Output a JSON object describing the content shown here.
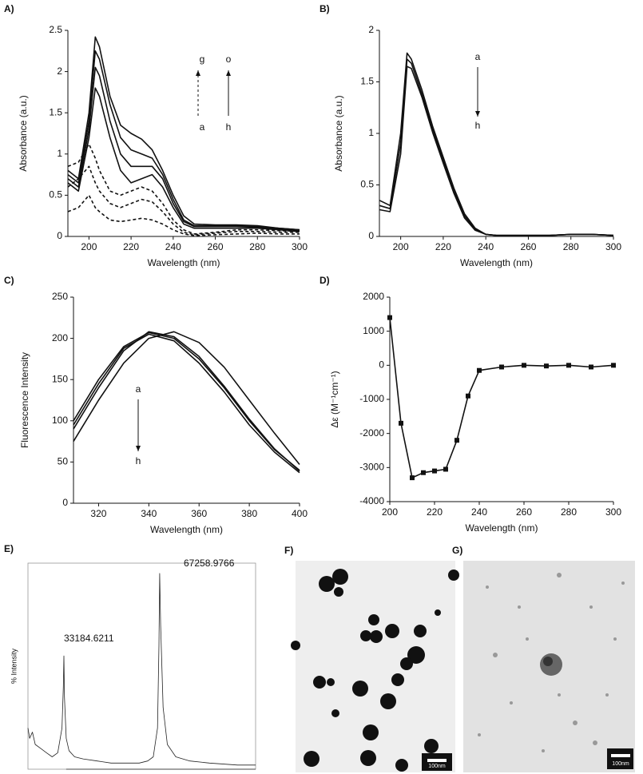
{
  "chart_data": [
    {
      "type": "line",
      "label": "A)",
      "xlabel": "Wavelength (nm)",
      "ylabel": "Absorbance (a.u.)",
      "xlim": [
        190,
        300
      ],
      "xticks": [
        200,
        220,
        240,
        260,
        280,
        300
      ],
      "ylim": [
        0,
        2.5
      ],
      "yticks": [
        0,
        0.5,
        1,
        1.5,
        2,
        2.5
      ],
      "annotations": [
        "g",
        "a",
        "o",
        "h"
      ],
      "x": [
        190,
        195,
        200,
        203,
        205,
        210,
        215,
        220,
        225,
        230,
        235,
        240,
        245,
        250,
        260,
        270,
        280,
        290,
        300
      ],
      "series": [
        {
          "color": "#111",
          "style": "solid",
          "values": [
            0.8,
            0.7,
            1.5,
            2.42,
            2.3,
            1.7,
            1.35,
            1.25,
            1.18,
            1.05,
            0.8,
            0.5,
            0.25,
            0.15,
            0.14,
            0.14,
            0.13,
            0.1,
            0.08
          ]
        },
        {
          "color": "#111",
          "style": "solid",
          "values": [
            0.75,
            0.65,
            1.4,
            2.25,
            2.15,
            1.6,
            1.2,
            1.05,
            1.0,
            0.95,
            0.75,
            0.45,
            0.2,
            0.13,
            0.13,
            0.13,
            0.12,
            0.1,
            0.08
          ]
        },
        {
          "color": "#111",
          "style": "solid",
          "values": [
            0.7,
            0.6,
            1.3,
            2.05,
            1.95,
            1.4,
            1.0,
            0.85,
            0.85,
            0.85,
            0.7,
            0.4,
            0.18,
            0.12,
            0.12,
            0.12,
            0.11,
            0.09,
            0.07
          ]
        },
        {
          "color": "#111",
          "style": "solid",
          "values": [
            0.65,
            0.55,
            1.2,
            1.8,
            1.7,
            1.2,
            0.8,
            0.65,
            0.7,
            0.75,
            0.6,
            0.35,
            0.15,
            0.1,
            0.1,
            0.1,
            0.1,
            0.08,
            0.06
          ]
        },
        {
          "color": "#111",
          "style": "dashed",
          "values": [
            0.85,
            0.9,
            1.12,
            0.95,
            0.8,
            0.55,
            0.5,
            0.55,
            0.6,
            0.55,
            0.4,
            0.2,
            0.08,
            0.03,
            0.05,
            0.08,
            0.08,
            0.07,
            0.06
          ]
        },
        {
          "color": "#111",
          "style": "dashed",
          "values": [
            0.6,
            0.7,
            0.85,
            0.65,
            0.55,
            0.4,
            0.35,
            0.4,
            0.45,
            0.42,
            0.3,
            0.15,
            0.05,
            0.02,
            0.04,
            0.06,
            0.06,
            0.05,
            0.05
          ]
        },
        {
          "color": "#111",
          "style": "dashed",
          "values": [
            0.3,
            0.35,
            0.5,
            0.35,
            0.3,
            0.2,
            0.18,
            0.2,
            0.22,
            0.2,
            0.15,
            0.08,
            0.03,
            0.01,
            0.02,
            0.03,
            0.04,
            0.03,
            0.03
          ]
        }
      ]
    },
    {
      "type": "line",
      "label": "B)",
      "xlabel": "Wavelength (nm)",
      "ylabel": "Absorbance (a.u.)",
      "xlim": [
        190,
        300
      ],
      "xticks": [
        200,
        220,
        240,
        260,
        280,
        300
      ],
      "ylim": [
        0,
        2
      ],
      "yticks": [
        0,
        0.5,
        1,
        1.5,
        2
      ],
      "annotations": [
        "a",
        "h"
      ],
      "x": [
        190,
        195,
        200,
        203,
        205,
        210,
        215,
        220,
        225,
        230,
        235,
        240,
        245,
        250,
        260,
        270,
        280,
        290,
        300
      ],
      "series": [
        {
          "color": "#111",
          "style": "solid",
          "values": [
            0.35,
            0.3,
            1.0,
            1.78,
            1.72,
            1.42,
            1.07,
            0.77,
            0.47,
            0.22,
            0.08,
            0.02,
            0.01,
            0.01,
            0.01,
            0.01,
            0.02,
            0.02,
            0.01
          ]
        },
        {
          "color": "#111",
          "style": "solid",
          "values": [
            0.3,
            0.27,
            0.9,
            1.72,
            1.68,
            1.38,
            1.04,
            0.74,
            0.44,
            0.2,
            0.07,
            0.02,
            0.01,
            0.01,
            0.01,
            0.01,
            0.02,
            0.02,
            0.01
          ]
        },
        {
          "color": "#111",
          "style": "solid",
          "values": [
            0.26,
            0.24,
            0.8,
            1.65,
            1.63,
            1.35,
            1.01,
            0.71,
            0.42,
            0.18,
            0.06,
            0.02,
            0.01,
            0.01,
            0.01,
            0.01,
            0.02,
            0.02,
            0.01
          ]
        }
      ]
    },
    {
      "type": "line",
      "label": "C)",
      "xlabel": "Wavelength (nm)",
      "ylabel": "Fluorescence Intensity",
      "xlim": [
        310,
        400
      ],
      "xticks": [
        320,
        340,
        360,
        380,
        400
      ],
      "ylim": [
        0,
        250
      ],
      "yticks": [
        0,
        50,
        100,
        150,
        200,
        250
      ],
      "annotations": [
        "a",
        "h"
      ],
      "x": [
        310,
        320,
        330,
        340,
        350,
        360,
        370,
        380,
        390,
        400
      ],
      "series": [
        {
          "color": "#111",
          "style": "solid",
          "values": [
            100,
            150,
            190,
            207,
            200,
            175,
            140,
            100,
            65,
            40
          ]
        },
        {
          "color": "#111",
          "style": "solid",
          "values": [
            95,
            145,
            188,
            205,
            197,
            170,
            135,
            95,
            62,
            37
          ]
        },
        {
          "color": "#111",
          "style": "solid",
          "values": [
            75,
            125,
            170,
            200,
            208,
            195,
            165,
            125,
            85,
            47
          ]
        },
        {
          "color": "#111",
          "style": "solid",
          "values": [
            90,
            140,
            185,
            208,
            202,
            178,
            142,
            102,
            66,
            39
          ]
        }
      ]
    },
    {
      "type": "line",
      "label": "D)",
      "xlabel": "Wavelength (nm)",
      "ylabel": "Δε (M⁻¹cm⁻¹)",
      "xlim": [
        200,
        300
      ],
      "xticks": [
        200,
        220,
        240,
        260,
        280,
        300
      ],
      "ylim": [
        -4000,
        2000
      ],
      "yticks": [
        -4000,
        -3000,
        -2000,
        -1000,
        0,
        1000,
        2000
      ],
      "markers": true,
      "x": [
        200,
        205,
        210,
        215,
        220,
        225,
        230,
        235,
        240,
        250,
        260,
        270,
        280,
        290,
        300
      ],
      "series": [
        {
          "color": "#111",
          "style": "solid",
          "values": [
            1400,
            -1700,
            -3300,
            -3150,
            -3100,
            -3050,
            -2200,
            -900,
            -150,
            -50,
            0,
            -20,
            0,
            -50,
            0
          ]
        }
      ]
    },
    {
      "type": "spectrum",
      "label": "E)",
      "ylabel": "% Intensity",
      "xlim": [
        20400,
        101400
      ],
      "ylim": [
        0,
        100
      ],
      "annotations": [
        "33184.6211",
        "67258.9766"
      ],
      "x": [
        20400,
        21000,
        22000,
        23000,
        25000,
        27000,
        29000,
        31000,
        32500,
        33000,
        33184,
        33400,
        34000,
        35000,
        37000,
        40000,
        45000,
        50000,
        55000,
        60000,
        63000,
        65000,
        66500,
        67000,
        67258,
        67600,
        68500,
        70000,
        73000,
        78000,
        85000,
        95000,
        101400
      ],
      "series": [
        {
          "color": "#222",
          "style": "solid",
          "values": [
            20,
            15,
            18,
            12,
            10,
            8,
            6,
            8,
            20,
            40,
            55,
            35,
            15,
            9,
            6,
            5,
            4,
            3,
            3,
            3,
            4,
            6,
            20,
            60,
            95,
            70,
            30,
            12,
            6,
            4,
            3,
            2,
            2
          ]
        }
      ]
    }
  ],
  "images": [
    {
      "label": "F)",
      "scale": "100nm"
    },
    {
      "label": "G)",
      "scale": "100nm"
    }
  ]
}
